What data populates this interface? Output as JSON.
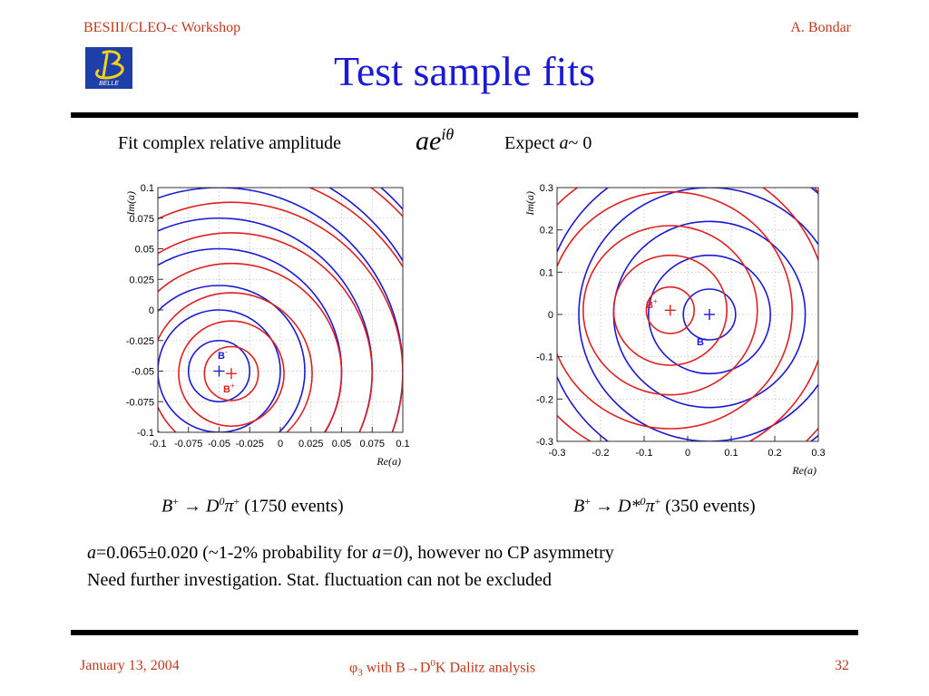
{
  "header": {
    "left": "BESIII/CLEO-c Workshop",
    "right": "A. Bondar"
  },
  "logo": {
    "brand_text": "BELLE",
    "colors": {
      "bg": "#1e3fa8",
      "glyph": "#f2d21a"
    }
  },
  "title": "Test sample fits",
  "statement": {
    "text": "Fit complex relative amplitude",
    "formula_base": "ae",
    "formula_exp": "iθ",
    "expect_prefix": "Expect ",
    "expect_var": "a",
    "expect_suffix": "~ 0"
  },
  "chart_data": [
    {
      "type": "contour",
      "xlabel": "Re(a)",
      "ylabel": "Im(a)",
      "xlim": [
        -0.1,
        0.1
      ],
      "ylim": [
        -0.1,
        0.1
      ],
      "xticks": [
        "-0.1",
        "-0.075",
        "-0.05",
        "-0.025",
        "0",
        "0.025",
        "0.05",
        "0.075",
        "0.1"
      ],
      "yticks": [
        "-0.1",
        "-0.075",
        "-0.05",
        "-0.025",
        "0",
        "0.025",
        "0.05",
        "0.075",
        "0.1"
      ],
      "grid": true,
      "series": [
        {
          "name": "B-",
          "color": "#1a1ad6",
          "center": [
            -0.05,
            -0.05
          ],
          "levels": [
            0.025,
            0.05,
            0.07,
            0.1,
            0.125,
            0.15,
            0.175,
            0.2,
            0.225
          ]
        },
        {
          "name": "B+",
          "color": "#e02020",
          "center": [
            -0.04,
            -0.052
          ],
          "levels": [
            0.022,
            0.043,
            0.066,
            0.09,
            0.115,
            0.14,
            0.165,
            0.19,
            0.215
          ]
        }
      ],
      "labels": [
        {
          "text": "B",
          "sup": "-",
          "color": "#1a1ad6"
        },
        {
          "text": "B",
          "sup": "+",
          "color": "#e02020"
        }
      ],
      "caption": {
        "b": "B",
        "b_sup": "+",
        "arrow": "→",
        "d": "D",
        "d_sup": "0",
        "pi": "π",
        "pi_sup": "+",
        "events": "(1750 events)"
      }
    },
    {
      "type": "contour",
      "xlabel": "Re(a)",
      "ylabel": "Im(a)",
      "xlim": [
        -0.3,
        0.3
      ],
      "ylim": [
        -0.3,
        0.3
      ],
      "xticks": [
        "-0.3",
        "-0.2",
        "-0.1",
        "0",
        "0.1",
        "0.2",
        "0.3"
      ],
      "yticks": [
        "-0.3",
        "-0.2",
        "-0.1",
        "0",
        "0.1",
        "0.2",
        "0.3"
      ],
      "grid": true,
      "series": [
        {
          "name": "B-",
          "color": "#1a1ad6",
          "center": [
            0.05,
            0.0
          ],
          "levels": [
            0.06,
            0.14,
            0.22,
            0.3,
            0.38,
            0.46
          ]
        },
        {
          "name": "B+",
          "color": "#e02020",
          "center": [
            -0.04,
            0.01
          ],
          "levels": [
            0.055,
            0.13,
            0.2,
            0.28,
            0.36,
            0.44
          ]
        }
      ],
      "labels": [
        {
          "text": "B",
          "sup": "+",
          "color": "#e02020"
        },
        {
          "text": "B",
          "sup": "-",
          "color": "#1a1ad6"
        }
      ],
      "caption": {
        "b": "B",
        "b_sup": "+",
        "arrow": "→",
        "d": "D*",
        "d_sup": "0",
        "pi": "π",
        "pi_sup": "+",
        "events": "(350 events)"
      }
    }
  ],
  "conclusion": {
    "l1_var": "a",
    "l1_value": "=0.065±0.020 (~1-2% probability for ",
    "l1_cond": "a=0",
    "l1_rest": "), however no CP asymmetry",
    "l2": "Need further investigation. Stat. fluctuation can not be excluded"
  },
  "footer": {
    "date": "January 13, 2004",
    "phi": "φ",
    "phi_sub": "3",
    "topic_a": " with B",
    "arrow": "→",
    "topic_d": "D",
    "d_sup": "0",
    "topic_b": "K Dalitz analysis",
    "page": "32"
  }
}
